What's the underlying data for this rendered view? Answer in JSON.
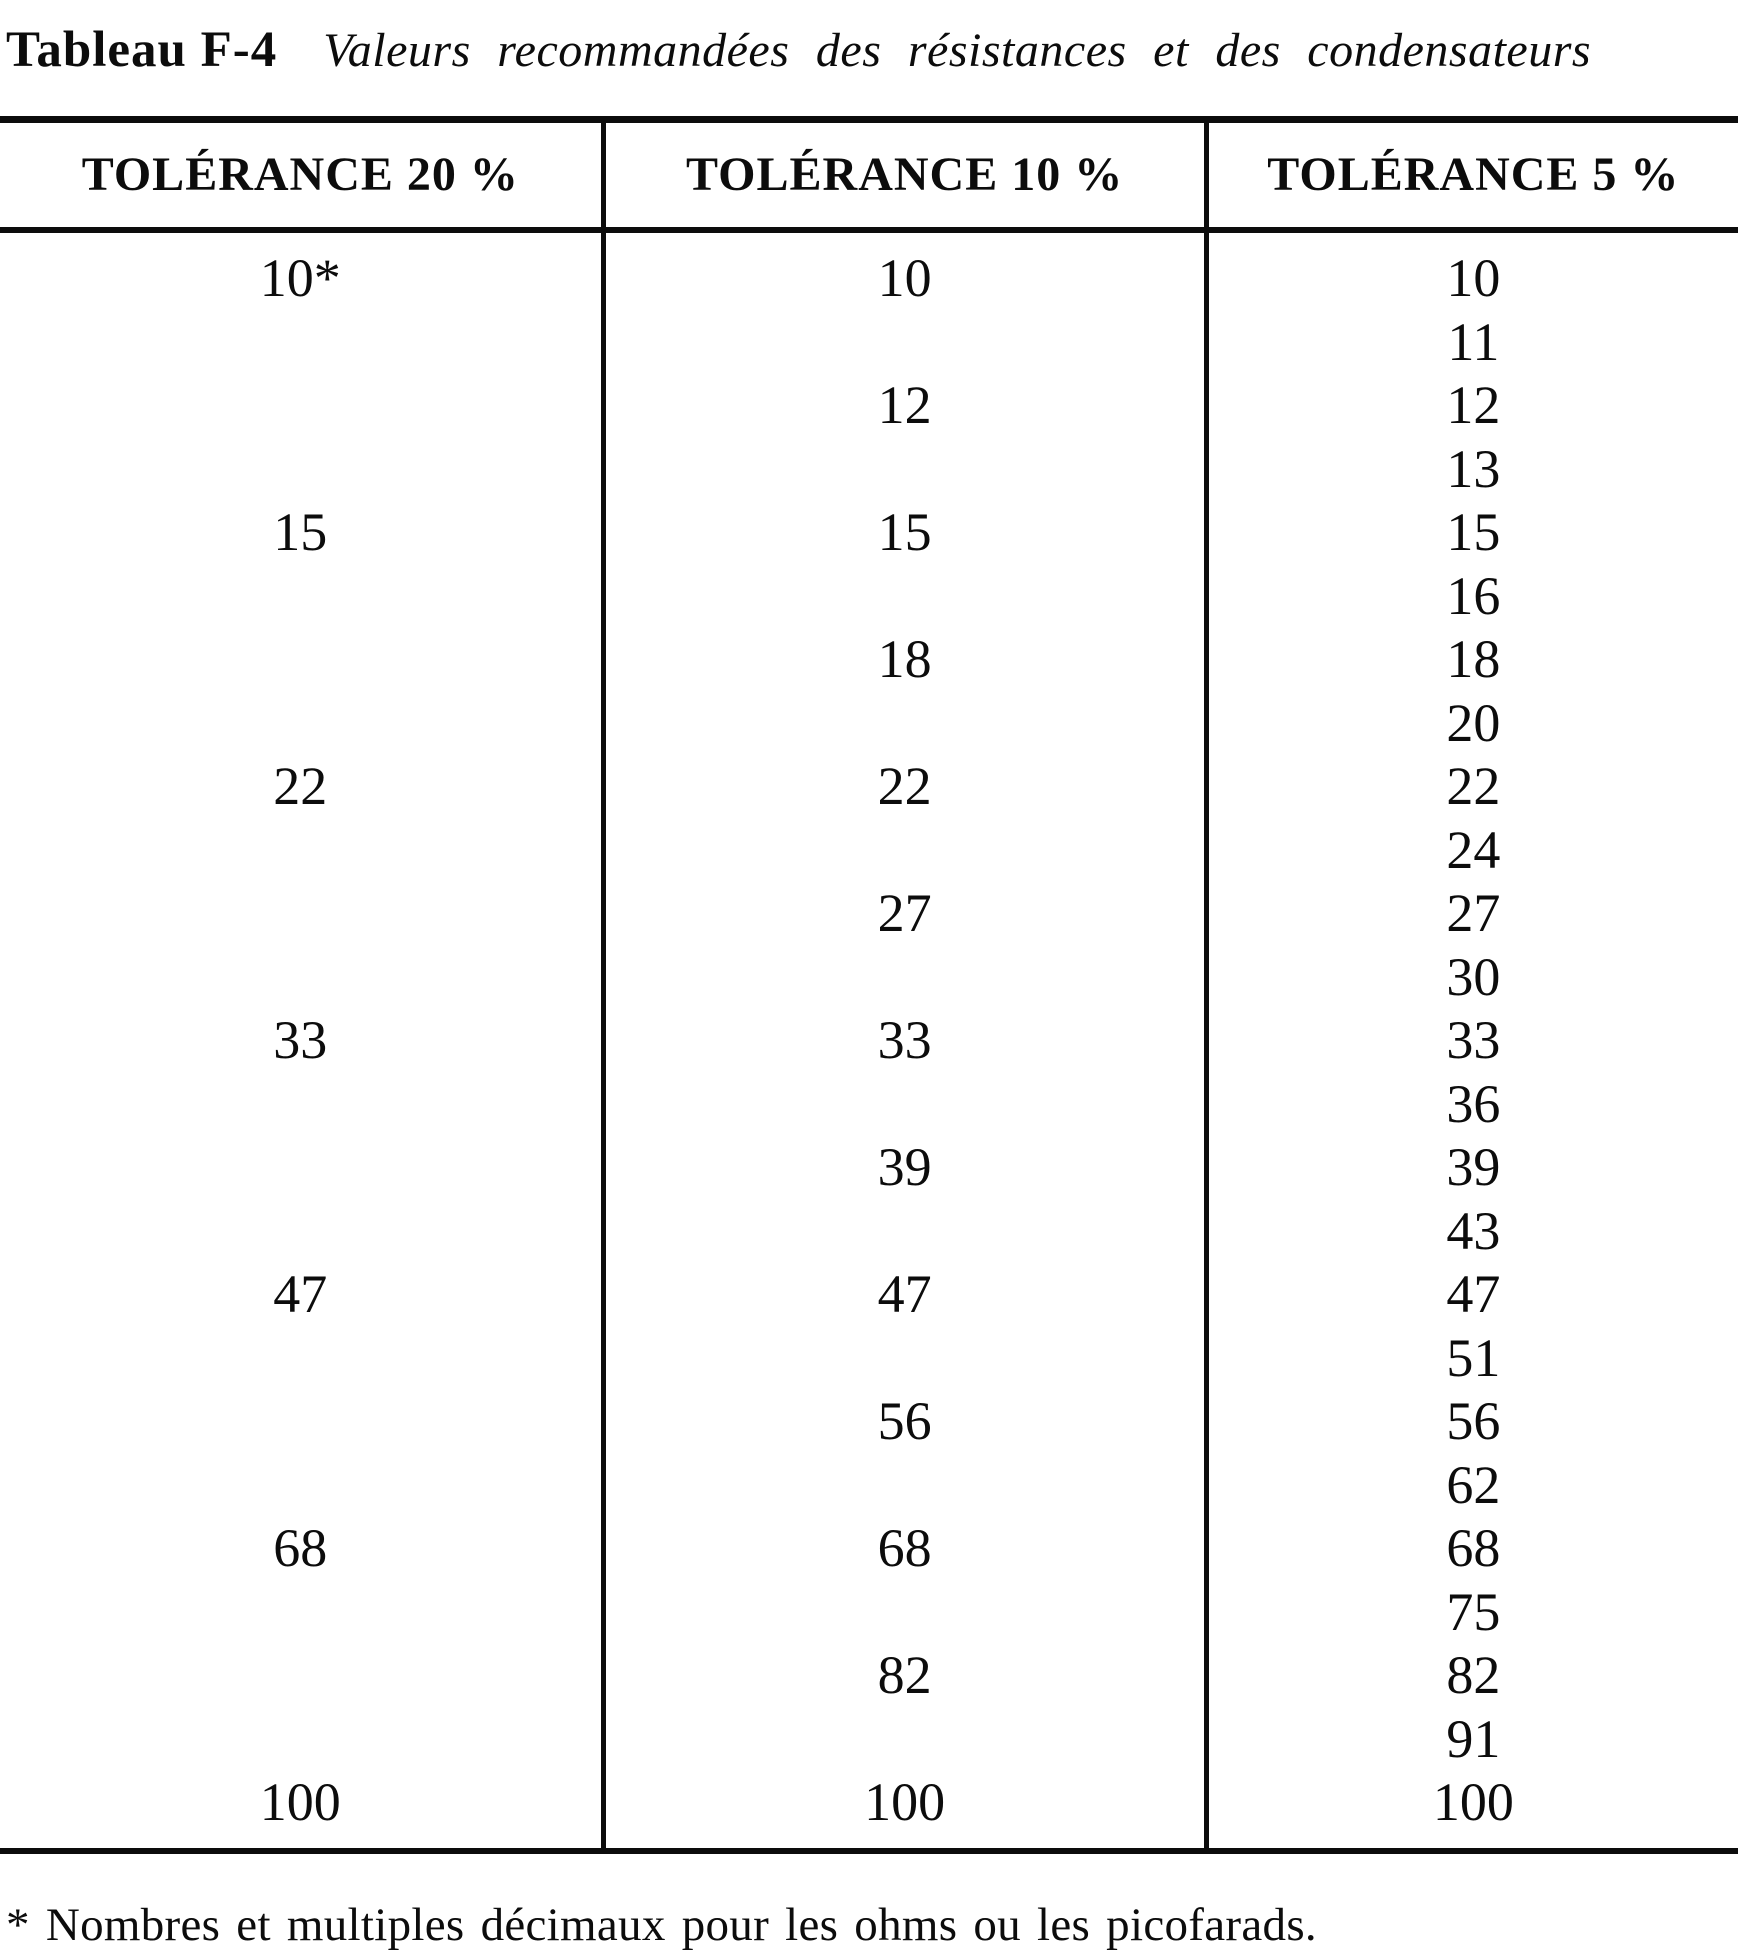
{
  "title": {
    "label": "Tableau F-4",
    "caption": "Valeurs recommandées des résistances et des condensateurs"
  },
  "table": {
    "columns": [
      "TOLÉRANCE 20 %",
      "TOLÉRANCE 10 %",
      "TOLÉRANCE 5 %"
    ],
    "rows": [
      [
        "10*",
        "10",
        "10"
      ],
      [
        "",
        "",
        "11"
      ],
      [
        "",
        "12",
        "12"
      ],
      [
        "",
        "",
        "13"
      ],
      [
        "15",
        "15",
        "15"
      ],
      [
        "",
        "",
        "16"
      ],
      [
        "",
        "18",
        "18"
      ],
      [
        "",
        "",
        "20"
      ],
      [
        "22",
        "22",
        "22"
      ],
      [
        "",
        "",
        "24"
      ],
      [
        "",
        "27",
        "27"
      ],
      [
        "",
        "",
        "30"
      ],
      [
        "33",
        "33",
        "33"
      ],
      [
        "",
        "",
        "36"
      ],
      [
        "",
        "39",
        "39"
      ],
      [
        "",
        "",
        "43"
      ],
      [
        "47",
        "47",
        "47"
      ],
      [
        "",
        "",
        "51"
      ],
      [
        "",
        "56",
        "56"
      ],
      [
        "",
        "",
        "62"
      ],
      [
        "68",
        "68",
        "68"
      ],
      [
        "",
        "",
        "75"
      ],
      [
        "",
        "82",
        "82"
      ],
      [
        "",
        "",
        "91"
      ],
      [
        "100",
        "100",
        "100"
      ]
    ]
  },
  "footnote": "* Nombres et multiples décimaux pour les ohms ou les picofarads."
}
